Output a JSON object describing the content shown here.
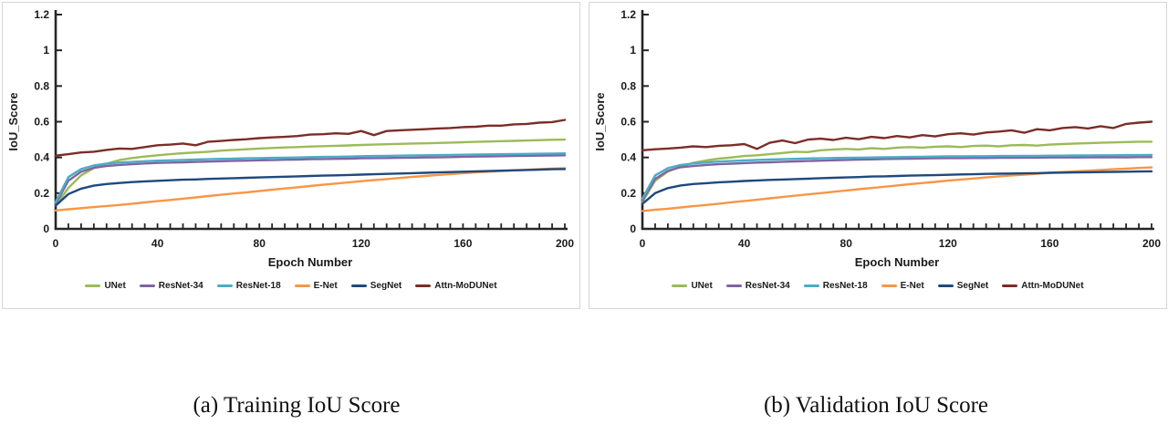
{
  "page": {
    "background": "#ffffff"
  },
  "captions": [
    {
      "text": "(a) Training IoU Score"
    },
    {
      "text": "(b) Validation IoU Score"
    }
  ],
  "chart_data": [
    {
      "id": "training-iou",
      "type": "line",
      "title": "",
      "xlabel": "Epoch Number",
      "ylabel": "IoU_Score",
      "xlim": [
        0,
        200
      ],
      "ylim": [
        0,
        1.2
      ],
      "xticks": [
        0,
        40,
        80,
        120,
        160,
        200
      ],
      "yticks": [
        0,
        0.2,
        0.4,
        0.6,
        0.8,
        1,
        1.2
      ],
      "ytick_labels": [
        "0",
        "0.2",
        "0.4",
        "0.6",
        "0.8",
        "1",
        "1.2"
      ],
      "minor_xtick_step": 5,
      "grid": false,
      "legend_position": "bottom",
      "axis_color": "#262626",
      "x": [
        0,
        5,
        10,
        15,
        20,
        25,
        30,
        35,
        40,
        45,
        50,
        55,
        60,
        65,
        70,
        75,
        80,
        85,
        90,
        95,
        100,
        105,
        110,
        115,
        120,
        125,
        130,
        135,
        140,
        145,
        150,
        155,
        160,
        165,
        170,
        175,
        180,
        185,
        190,
        195,
        200
      ],
      "series": [
        {
          "name": "UNet",
          "color": "#9BBB59",
          "values": [
            0.13,
            0.23,
            0.3,
            0.34,
            0.365,
            0.385,
            0.397,
            0.405,
            0.412,
            0.418,
            0.424,
            0.428,
            0.432,
            0.438,
            0.442,
            0.446,
            0.45,
            0.453,
            0.456,
            0.458,
            0.461,
            0.463,
            0.465,
            0.467,
            0.47,
            0.472,
            0.474,
            0.476,
            0.478,
            0.479,
            0.481,
            0.483,
            0.485,
            0.487,
            0.489,
            0.491,
            0.493,
            0.495,
            0.497,
            0.499,
            0.5
          ]
        },
        {
          "name": "ResNet-34",
          "color": "#8064A2",
          "values": [
            0.14,
            0.27,
            0.32,
            0.342,
            0.352,
            0.358,
            0.362,
            0.366,
            0.369,
            0.371,
            0.373,
            0.375,
            0.377,
            0.379,
            0.381,
            0.382,
            0.384,
            0.385,
            0.387,
            0.388,
            0.39,
            0.391,
            0.392,
            0.393,
            0.395,
            0.396,
            0.397,
            0.398,
            0.399,
            0.4,
            0.401,
            0.402,
            0.404,
            0.405,
            0.406,
            0.407,
            0.408,
            0.409,
            0.41,
            0.411,
            0.412
          ]
        },
        {
          "name": "ResNet-18",
          "color": "#4BACC6",
          "values": [
            0.15,
            0.29,
            0.335,
            0.355,
            0.365,
            0.371,
            0.375,
            0.379,
            0.382,
            0.384,
            0.386,
            0.388,
            0.39,
            0.392,
            0.393,
            0.395,
            0.396,
            0.398,
            0.399,
            0.4,
            0.402,
            0.403,
            0.404,
            0.405,
            0.407,
            0.408,
            0.409,
            0.41,
            0.411,
            0.412,
            0.413,
            0.414,
            0.415,
            0.416,
            0.417,
            0.418,
            0.419,
            0.42,
            0.421,
            0.422,
            0.423
          ]
        },
        {
          "name": "E-Net",
          "color": "#F79646",
          "values": [
            0.103,
            0.11,
            0.116,
            0.122,
            0.128,
            0.134,
            0.141,
            0.148,
            0.155,
            0.162,
            0.169,
            0.176,
            0.184,
            0.191,
            0.198,
            0.205,
            0.212,
            0.219,
            0.226,
            0.233,
            0.24,
            0.247,
            0.254,
            0.26,
            0.267,
            0.273,
            0.279,
            0.285,
            0.291,
            0.296,
            0.302,
            0.307,
            0.312,
            0.316,
            0.32,
            0.324,
            0.328,
            0.331,
            0.334,
            0.337,
            0.34
          ]
        },
        {
          "name": "SegNet",
          "color": "#1F497D",
          "values": [
            0.13,
            0.195,
            0.225,
            0.242,
            0.251,
            0.257,
            0.262,
            0.266,
            0.269,
            0.272,
            0.275,
            0.277,
            0.28,
            0.282,
            0.284,
            0.286,
            0.288,
            0.29,
            0.292,
            0.294,
            0.296,
            0.298,
            0.3,
            0.302,
            0.304,
            0.306,
            0.308,
            0.31,
            0.312,
            0.314,
            0.316,
            0.318,
            0.32,
            0.322,
            0.324,
            0.326,
            0.328,
            0.33,
            0.332,
            0.334,
            0.335
          ]
        },
        {
          "name": "Attn-MoDUNet",
          "color": "#7B2D28",
          "values": [
            0.41,
            0.418,
            0.428,
            0.432,
            0.442,
            0.45,
            0.448,
            0.458,
            0.468,
            0.472,
            0.478,
            0.468,
            0.488,
            0.492,
            0.498,
            0.502,
            0.508,
            0.512,
            0.515,
            0.52,
            0.528,
            0.53,
            0.535,
            0.532,
            0.548,
            0.525,
            0.548,
            0.552,
            0.555,
            0.558,
            0.562,
            0.565,
            0.57,
            0.572,
            0.578,
            0.578,
            0.585,
            0.588,
            0.595,
            0.598,
            0.61
          ]
        }
      ]
    },
    {
      "id": "validation-iou",
      "type": "line",
      "title": "",
      "xlabel": "Epoch Number",
      "ylabel": "IoU_Score",
      "xlim": [
        0,
        200
      ],
      "ylim": [
        0,
        1.2
      ],
      "xticks": [
        0,
        40,
        80,
        120,
        160,
        200
      ],
      "yticks": [
        0,
        0.2,
        0.4,
        0.6,
        0.8,
        1,
        1.2
      ],
      "ytick_labels": [
        "0",
        "0.2",
        "0.4",
        "0.6",
        "0.8",
        "1",
        "1.2"
      ],
      "minor_xtick_step": 5,
      "grid": false,
      "legend_position": "bottom",
      "axis_color": "#262626",
      "x": [
        0,
        5,
        10,
        15,
        20,
        25,
        30,
        35,
        40,
        45,
        50,
        55,
        60,
        65,
        70,
        75,
        80,
        85,
        90,
        95,
        100,
        105,
        110,
        115,
        120,
        125,
        130,
        135,
        140,
        145,
        150,
        155,
        160,
        165,
        170,
        175,
        180,
        185,
        190,
        195,
        200
      ],
      "series": [
        {
          "name": "UNet",
          "color": "#9BBB59",
          "values": [
            0.15,
            0.27,
            0.32,
            0.35,
            0.37,
            0.383,
            0.393,
            0.4,
            0.408,
            0.412,
            0.418,
            0.425,
            0.432,
            0.43,
            0.44,
            0.445,
            0.448,
            0.445,
            0.452,
            0.448,
            0.455,
            0.458,
            0.455,
            0.46,
            0.462,
            0.458,
            0.464,
            0.466,
            0.462,
            0.468,
            0.47,
            0.466,
            0.472,
            0.475,
            0.478,
            0.48,
            0.482,
            0.484,
            0.486,
            0.488,
            0.488
          ]
        },
        {
          "name": "ResNet-34",
          "color": "#8064A2",
          "values": [
            0.16,
            0.28,
            0.325,
            0.345,
            0.352,
            0.358,
            0.362,
            0.365,
            0.368,
            0.371,
            0.373,
            0.376,
            0.378,
            0.38,
            0.382,
            0.384,
            0.386,
            0.388,
            0.389,
            0.391,
            0.392,
            0.393,
            0.394,
            0.395,
            0.396,
            0.396,
            0.397,
            0.397,
            0.398,
            0.398,
            0.399,
            0.399,
            0.4,
            0.4,
            0.4,
            0.401,
            0.401,
            0.401,
            0.401,
            0.402,
            0.402
          ]
        },
        {
          "name": "ResNet-18",
          "color": "#4BACC6",
          "values": [
            0.17,
            0.3,
            0.34,
            0.358,
            0.366,
            0.372,
            0.377,
            0.38,
            0.383,
            0.386,
            0.388,
            0.39,
            0.392,
            0.394,
            0.395,
            0.397,
            0.398,
            0.399,
            0.4,
            0.401,
            0.402,
            0.403,
            0.404,
            0.405,
            0.406,
            0.406,
            0.407,
            0.407,
            0.408,
            0.408,
            0.409,
            0.409,
            0.41,
            0.41,
            0.411,
            0.411,
            0.412,
            0.412,
            0.413,
            0.413,
            0.414
          ]
        },
        {
          "name": "E-Net",
          "color": "#F79646",
          "values": [
            0.1,
            0.107,
            0.113,
            0.12,
            0.127,
            0.134,
            0.141,
            0.149,
            0.156,
            0.163,
            0.171,
            0.178,
            0.186,
            0.193,
            0.2,
            0.208,
            0.215,
            0.222,
            0.229,
            0.236,
            0.243,
            0.25,
            0.257,
            0.263,
            0.27,
            0.276,
            0.282,
            0.288,
            0.294,
            0.299,
            0.304,
            0.309,
            0.314,
            0.318,
            0.322,
            0.326,
            0.33,
            0.334,
            0.337,
            0.341,
            0.344
          ]
        },
        {
          "name": "SegNet",
          "color": "#1F497D",
          "values": [
            0.14,
            0.2,
            0.228,
            0.243,
            0.251,
            0.256,
            0.261,
            0.264,
            0.268,
            0.271,
            0.274,
            0.276,
            0.279,
            0.281,
            0.284,
            0.286,
            0.288,
            0.29,
            0.293,
            0.294,
            0.296,
            0.298,
            0.3,
            0.301,
            0.303,
            0.305,
            0.306,
            0.308,
            0.309,
            0.31,
            0.311,
            0.312,
            0.314,
            0.315,
            0.316,
            0.317,
            0.318,
            0.319,
            0.32,
            0.321,
            0.322
          ]
        },
        {
          "name": "Attn-MoDUNet",
          "color": "#7B2D28",
          "values": [
            0.44,
            0.446,
            0.45,
            0.455,
            0.462,
            0.458,
            0.465,
            0.468,
            0.475,
            0.448,
            0.482,
            0.495,
            0.48,
            0.5,
            0.505,
            0.498,
            0.51,
            0.502,
            0.515,
            0.508,
            0.52,
            0.512,
            0.525,
            0.518,
            0.53,
            0.535,
            0.528,
            0.54,
            0.545,
            0.552,
            0.538,
            0.558,
            0.552,
            0.565,
            0.57,
            0.562,
            0.575,
            0.565,
            0.588,
            0.595,
            0.6
          ]
        }
      ]
    }
  ]
}
